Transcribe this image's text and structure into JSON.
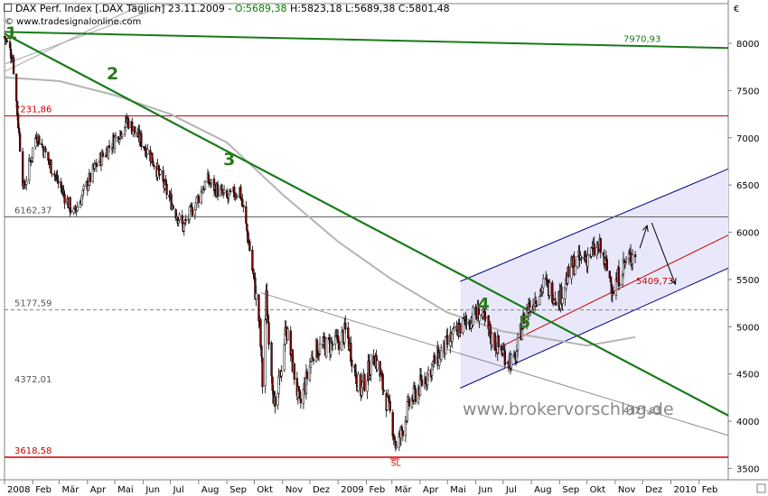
{
  "header": {
    "instrument": "DAX Perf. Index [.DAX Täglich] 23.11.2009 - ",
    "ohlc_open": "O:5689,38",
    "ohlc_rest": " H:5823,18 L:5689,38 C:5801,48",
    "source": "© www.tradesignalonline.com",
    "currency": "€",
    "watermark": "www.brokervorschlag.de"
  },
  "colors": {
    "green_trend": "#1a7a1a",
    "red_level": "#cc0000",
    "channel_blue": "#00008b",
    "channel_fill": "#e8e8fa",
    "ma_gray": "#b4b4b4",
    "candle_up": "#ffffff",
    "candle_down": "#800000",
    "label_green": "#2a7a1a"
  },
  "chart_data": {
    "type": "candlestick",
    "title": "DAX Perf. Index [.DAX Täglich] 23.11.2009",
    "x_ticks": [
      "2008",
      "Feb",
      "Mär",
      "Apr",
      "Mai",
      "Jun",
      "Jul",
      "Aug",
      "Sep",
      "Okt",
      "Nov",
      "Dez",
      "2009",
      "Feb",
      "Mär",
      "Apr",
      "Mai",
      "Jun",
      "Jul",
      "Aug",
      "Sep",
      "Okt",
      "Nov",
      "Dez",
      "2010",
      "Feb"
    ],
    "y_ticks": [
      3500,
      4000,
      4500,
      5000,
      5500,
      6000,
      6500,
      7000,
      7500,
      8000
    ],
    "ylim": [
      3380,
      8420
    ],
    "price_path": [
      [
        "2008-01-01",
        8070
      ],
      [
        "2008-01-10",
        7850
      ],
      [
        "2008-01-22",
        6450
      ],
      [
        "2008-02-05",
        7050
      ],
      [
        "2008-03-01",
        6500
      ],
      [
        "2008-03-17",
        6190
      ],
      [
        "2008-04-10",
        6700
      ],
      [
        "2008-05-15",
        7180
      ],
      [
        "2008-06-10",
        6800
      ],
      [
        "2008-07-05",
        6250
      ],
      [
        "2008-07-15",
        6050
      ],
      [
        "2008-08-10",
        6550
      ],
      [
        "2008-09-01",
        6350
      ],
      [
        "2008-09-15",
        6450
      ],
      [
        "2008-09-25",
        5900
      ],
      [
        "2008-10-07",
        5000
      ],
      [
        "2008-10-10",
        4400
      ],
      [
        "2008-10-14",
        5300
      ],
      [
        "2008-10-24",
        4050
      ],
      [
        "2008-11-05",
        5000
      ],
      [
        "2008-11-20",
        4150
      ],
      [
        "2008-12-05",
        4750
      ],
      [
        "2008-12-31",
        4830
      ],
      [
        "2009-01-10",
        4950
      ],
      [
        "2009-01-25",
        4300
      ],
      [
        "2009-02-10",
        4700
      ],
      [
        "2009-03-01",
        4000
      ],
      [
        "2009-03-06",
        3700
      ],
      [
        "2009-03-20",
        4180
      ],
      [
        "2009-04-15",
        4600
      ],
      [
        "2009-05-15",
        5000
      ],
      [
        "2009-06-05",
        5160
      ],
      [
        "2009-06-20",
        4850
      ],
      [
        "2009-07-13",
        4600
      ],
      [
        "2009-07-25",
        5150
      ],
      [
        "2009-08-15",
        5450
      ],
      [
        "2009-09-01",
        5300
      ],
      [
        "2009-09-15",
        5650
      ],
      [
        "2009-10-15",
        5830
      ],
      [
        "2009-10-30",
        5400
      ],
      [
        "2009-11-10",
        5650
      ],
      [
        "2009-11-23",
        5800
      ]
    ],
    "horizontal_levels": [
      {
        "label": "7231,86",
        "value": 7231.86,
        "style": "red"
      },
      {
        "label": "6162,37",
        "value": 6162.37,
        "style": "gray"
      },
      {
        "label": "5177,59",
        "value": 5177.59,
        "style": "dashed"
      },
      {
        "label": "4372,01",
        "value": 4372.01,
        "style": "none"
      },
      {
        "label": "3618,58",
        "value": 3618.58,
        "style": "red"
      }
    ],
    "trendlines": [
      {
        "label": "7970,93",
        "from": [
          "2008-01-01",
          8120
        ],
        "to": [
          "2010-03-05",
          7950
        ],
        "style": "green"
      },
      {
        "from": [
          "2008-01-01",
          8100
        ],
        "to": [
          "2010-03-05",
          4060
        ],
        "style": "green-bold"
      },
      {
        "label": "4127,83",
        "from": [
          "2008-10-08",
          5360
        ],
        "to": [
          "2010-03-05",
          3850
        ],
        "style": "thin"
      }
    ],
    "channel": {
      "lower_from": [
        "2009-05-15",
        4350
      ],
      "lower_to": [
        "2010-03-05",
        5620
      ],
      "upper_from": [
        "2009-05-15",
        5480
      ],
      "upper_to": [
        "2010-03-05",
        6670
      ],
      "middle_label": "5409,73",
      "middle_from": [
        "2009-07-01",
        4800
      ],
      "middle_to": [
        "2010-03-05",
        5970
      ]
    },
    "moving_averages": [
      {
        "path": [
          [
            "2008-01-01",
            7640
          ],
          [
            "2008-03-01",
            7600
          ],
          [
            "2008-05-01",
            7450
          ],
          [
            "2008-07-01",
            7250
          ],
          [
            "2008-09-01",
            6950
          ],
          [
            "2008-11-01",
            6400
          ],
          [
            "2009-01-01",
            5900
          ],
          [
            "2009-03-01",
            5500
          ],
          [
            "2009-05-01",
            5150
          ],
          [
            "2009-07-01",
            4950
          ],
          [
            "2009-09-01",
            4850
          ],
          [
            "2009-10-01",
            4800
          ],
          [
            "2009-11-23",
            4890
          ]
        ]
      },
      {
        "path": [
          [
            "2008-01-01",
            7700
          ],
          [
            "2008-06-01",
            8420
          ]
        ]
      },
      {
        "path": [
          [
            "2008-01-01",
            7780
          ],
          [
            "2008-07-01",
            8420
          ]
        ]
      }
    ],
    "wave_labels": [
      {
        "text": "1",
        "at": [
          "2008-01-02",
          8050
        ]
      },
      {
        "text": "2",
        "at": [
          "2008-04-22",
          7620
        ]
      },
      {
        "text": "3",
        "at": [
          "2008-08-28",
          6710
        ]
      },
      {
        "text": "4",
        "at": [
          "2009-06-03",
          5180
        ]
      },
      {
        "text": "5",
        "at": [
          "2009-07-18",
          4990
        ]
      }
    ],
    "sl_label": {
      "text": "SL",
      "at": [
        "2009-03-04",
        3530
      ]
    },
    "arrows": [
      {
        "from": [
          "2009-11-28",
          5830
        ],
        "to": [
          "2009-12-06",
          6070
        ]
      },
      {
        "from": [
          "2009-12-11",
          6100
        ],
        "to": [
          "2010-01-06",
          5450
        ]
      }
    ]
  }
}
